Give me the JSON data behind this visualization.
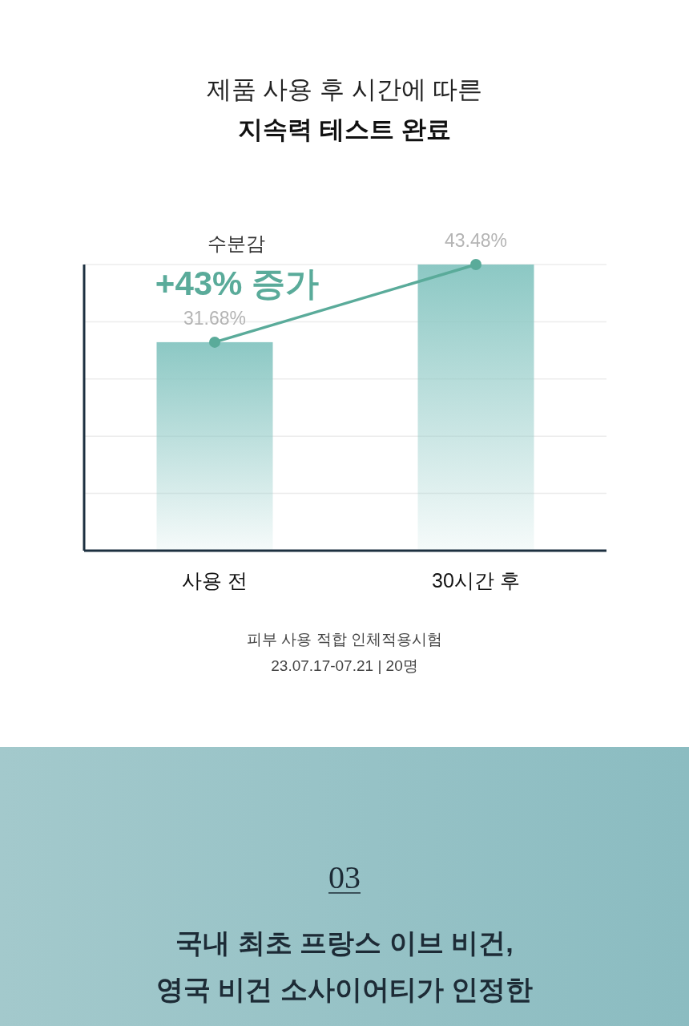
{
  "chart_data": {
    "type": "bar",
    "title": "제품 사용 후 시간에 따른",
    "subtitle": "지속력 테스트 완료",
    "categories": [
      "사용 전",
      "30시간 후"
    ],
    "series": [
      {
        "color": "#8cc8c4",
        "values": [
          31.68,
          43.48
        ]
      },
      {
        "type": "line",
        "color": "#5aab9a",
        "values": [
          31.68,
          43.48
        ],
        "value_labels": [
          "31.68%",
          "43.48%"
        ]
      }
    ],
    "grid": "y",
    "marker": "circle",
    "line_style": "solid",
    "annotations": [
      "수분감",
      "+43% 증가",
      "피부 사용 적합 인체적용시험",
      "23.07.17-07.21 | 20명",
      "03",
      "국내 최초 프랑스 이브 비건,",
      "영국 비건 소사이어티가 인정한"
    ]
  }
}
